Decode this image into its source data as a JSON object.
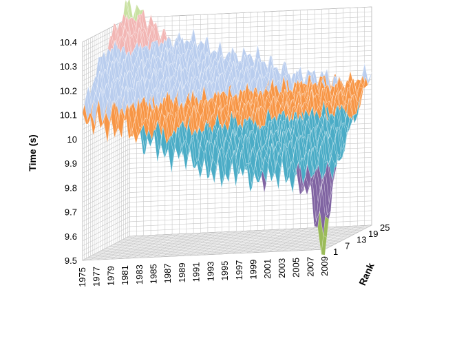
{
  "chart_data": {
    "type": "surface3d",
    "title": "",
    "ylabel": "Time (s)",
    "zlabel": "Rank",
    "xlabel": "",
    "x_ticks": [
      "1975",
      "1977",
      "1979",
      "1981",
      "1983",
      "1985",
      "1987",
      "1989",
      "1991",
      "1993",
      "1995",
      "1997",
      "1999",
      "2001",
      "2003",
      "2005",
      "2007",
      "2009"
    ],
    "z_ticks": [
      "1",
      "7",
      "13",
      "19",
      "25"
    ],
    "y_ticks": [
      "9.5",
      "9.6",
      "9.7",
      "9.8",
      "9.9",
      "10",
      "10.1",
      "10.2",
      "10.3",
      "10.4"
    ],
    "ylim": [
      9.5,
      10.4
    ],
    "x_range": [
      1975,
      2009
    ],
    "z_range": [
      1,
      25
    ],
    "grid": true,
    "bands": [
      {
        "range": [
          9.4,
          9.5
        ],
        "color": "#c0504d"
      },
      {
        "range": [
          9.5,
          9.6
        ],
        "color": "#9bbb59"
      },
      {
        "range": [
          9.6,
          9.7
        ],
        "color": "#8064a2"
      },
      {
        "range": [
          9.7,
          9.8
        ],
        "color": "#8064a2"
      },
      {
        "range": [
          9.8,
          9.9
        ],
        "color": "#4bacc6"
      },
      {
        "range": [
          9.9,
          10.0
        ],
        "color": "#4bacc6"
      },
      {
        "range": [
          10.0,
          10.1
        ],
        "color": "#f79646"
      },
      {
        "range": [
          10.1,
          10.2
        ],
        "color": "#b9cdee"
      },
      {
        "range": [
          10.2,
          10.3
        ],
        "color": "#b9cdee"
      },
      {
        "range": [
          10.3,
          10.4
        ],
        "color": "#f2b6b4"
      },
      {
        "range": [
          10.4,
          10.5
        ],
        "color": "#c9e1a2"
      }
    ],
    "surface_by_year": [
      {
        "year": 1975,
        "rank1": 10.06,
        "rank25": 10.45
      },
      {
        "year": 1977,
        "rank1": 10.08,
        "rank25": 10.4
      },
      {
        "year": 1979,
        "rank1": 10.05,
        "rank25": 10.35
      },
      {
        "year": 1981,
        "rank1": 10.05,
        "rank25": 10.3
      },
      {
        "year": 1983,
        "rank1": 9.97,
        "rank25": 10.3
      },
      {
        "year": 1985,
        "rank1": 9.98,
        "rank25": 10.28
      },
      {
        "year": 1987,
        "rank1": 9.93,
        "rank25": 10.25
      },
      {
        "year": 1989,
        "rank1": 9.92,
        "rank25": 10.24
      },
      {
        "year": 1991,
        "rank1": 9.86,
        "rank25": 10.22
      },
      {
        "year": 1993,
        "rank1": 9.85,
        "rank25": 10.21
      },
      {
        "year": 1995,
        "rank1": 9.84,
        "rank25": 10.18
      },
      {
        "year": 1997,
        "rank1": 9.84,
        "rank25": 10.16
      },
      {
        "year": 1999,
        "rank1": 9.79,
        "rank25": 10.13
      },
      {
        "year": 2001,
        "rank1": 9.82,
        "rank25": 10.12
      },
      {
        "year": 2003,
        "rank1": 9.84,
        "rank25": 10.12
      },
      {
        "year": 2005,
        "rank1": 9.77,
        "rank25": 10.1
      },
      {
        "year": 2007,
        "rank1": 9.74,
        "rank25": 10.1
      },
      {
        "year": 2009,
        "rank1": 9.58,
        "rank25": 10.12
      }
    ]
  }
}
